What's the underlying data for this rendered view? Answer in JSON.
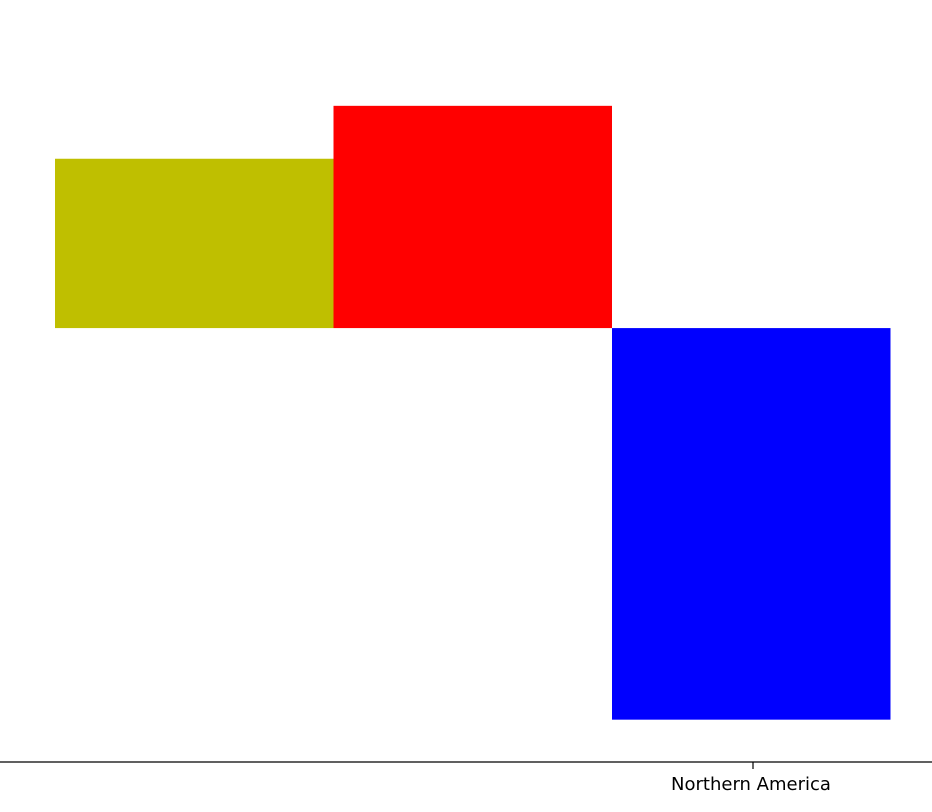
{
  "chart_data": {
    "type": "bar",
    "title": "",
    "xlabel": "",
    "ylabel": "",
    "grid": false,
    "x_axis_tick_labels": [
      "Northern America"
    ],
    "values": [
      1.6,
      2.1,
      -3.7
    ],
    "colors": [
      "#bfbf00",
      "#ff0000",
      "#0000ff"
    ],
    "ylim": [
      -4.1,
      3.1
    ]
  }
}
